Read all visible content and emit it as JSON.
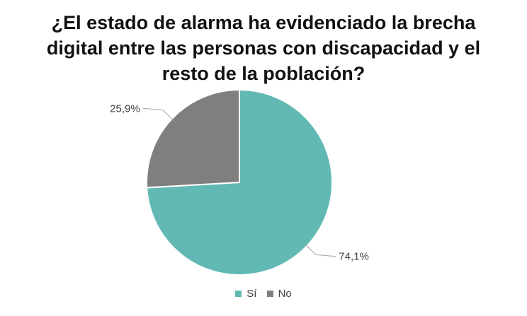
{
  "chart_data": {
    "type": "pie",
    "title_lines": [
      "¿El estado de alarma ha evidenciado la brecha",
      "digital entre las personas con discapacidad y el",
      "resto de la población?"
    ],
    "slices": [
      {
        "name": "Sí",
        "value": 74.1,
        "label": "74,1%",
        "color": "#62b9b3"
      },
      {
        "name": "No",
        "value": 25.9,
        "label": "25,9%",
        "color": "#7f7f7f"
      }
    ],
    "legend_position": "bottom",
    "start_angle_deg": 0,
    "direction": "clockwise"
  }
}
